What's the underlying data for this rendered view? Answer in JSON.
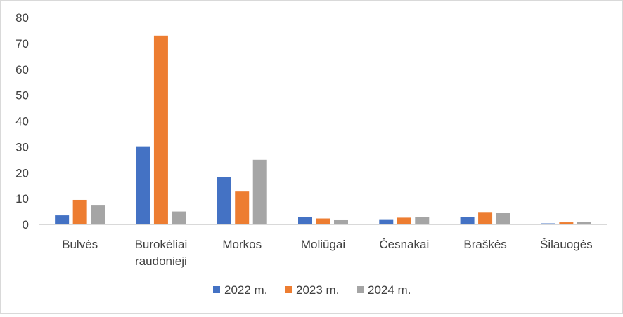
{
  "chart_data": {
    "type": "bar",
    "categories": [
      [
        "Bulvės"
      ],
      [
        "Burokėliai",
        "raudonieji"
      ],
      [
        "Morkos"
      ],
      [
        "Moliūgai"
      ],
      [
        "Česnakai"
      ],
      [
        "Braškės"
      ],
      [
        "Šilauogės"
      ]
    ],
    "series": [
      {
        "name": "2022 m.",
        "color": "#4472c4",
        "values": [
          3.5,
          30.2,
          18.3,
          2.9,
          2.0,
          2.8,
          0.4
        ]
      },
      {
        "name": "2023 m.",
        "color": "#ed7d31",
        "values": [
          9.5,
          73.0,
          12.7,
          2.3,
          2.6,
          4.8,
          0.8
        ]
      },
      {
        "name": "2024 m.",
        "color": "#a5a5a5",
        "values": [
          7.3,
          5.0,
          25.0,
          1.9,
          2.9,
          4.6,
          1.0
        ]
      }
    ],
    "y_ticks": [
      "0",
      "10",
      "20",
      "30",
      "40",
      "50",
      "60",
      "70",
      "80"
    ],
    "ylim": [
      0,
      80
    ],
    "grid": false,
    "legend_position": "bottom"
  }
}
